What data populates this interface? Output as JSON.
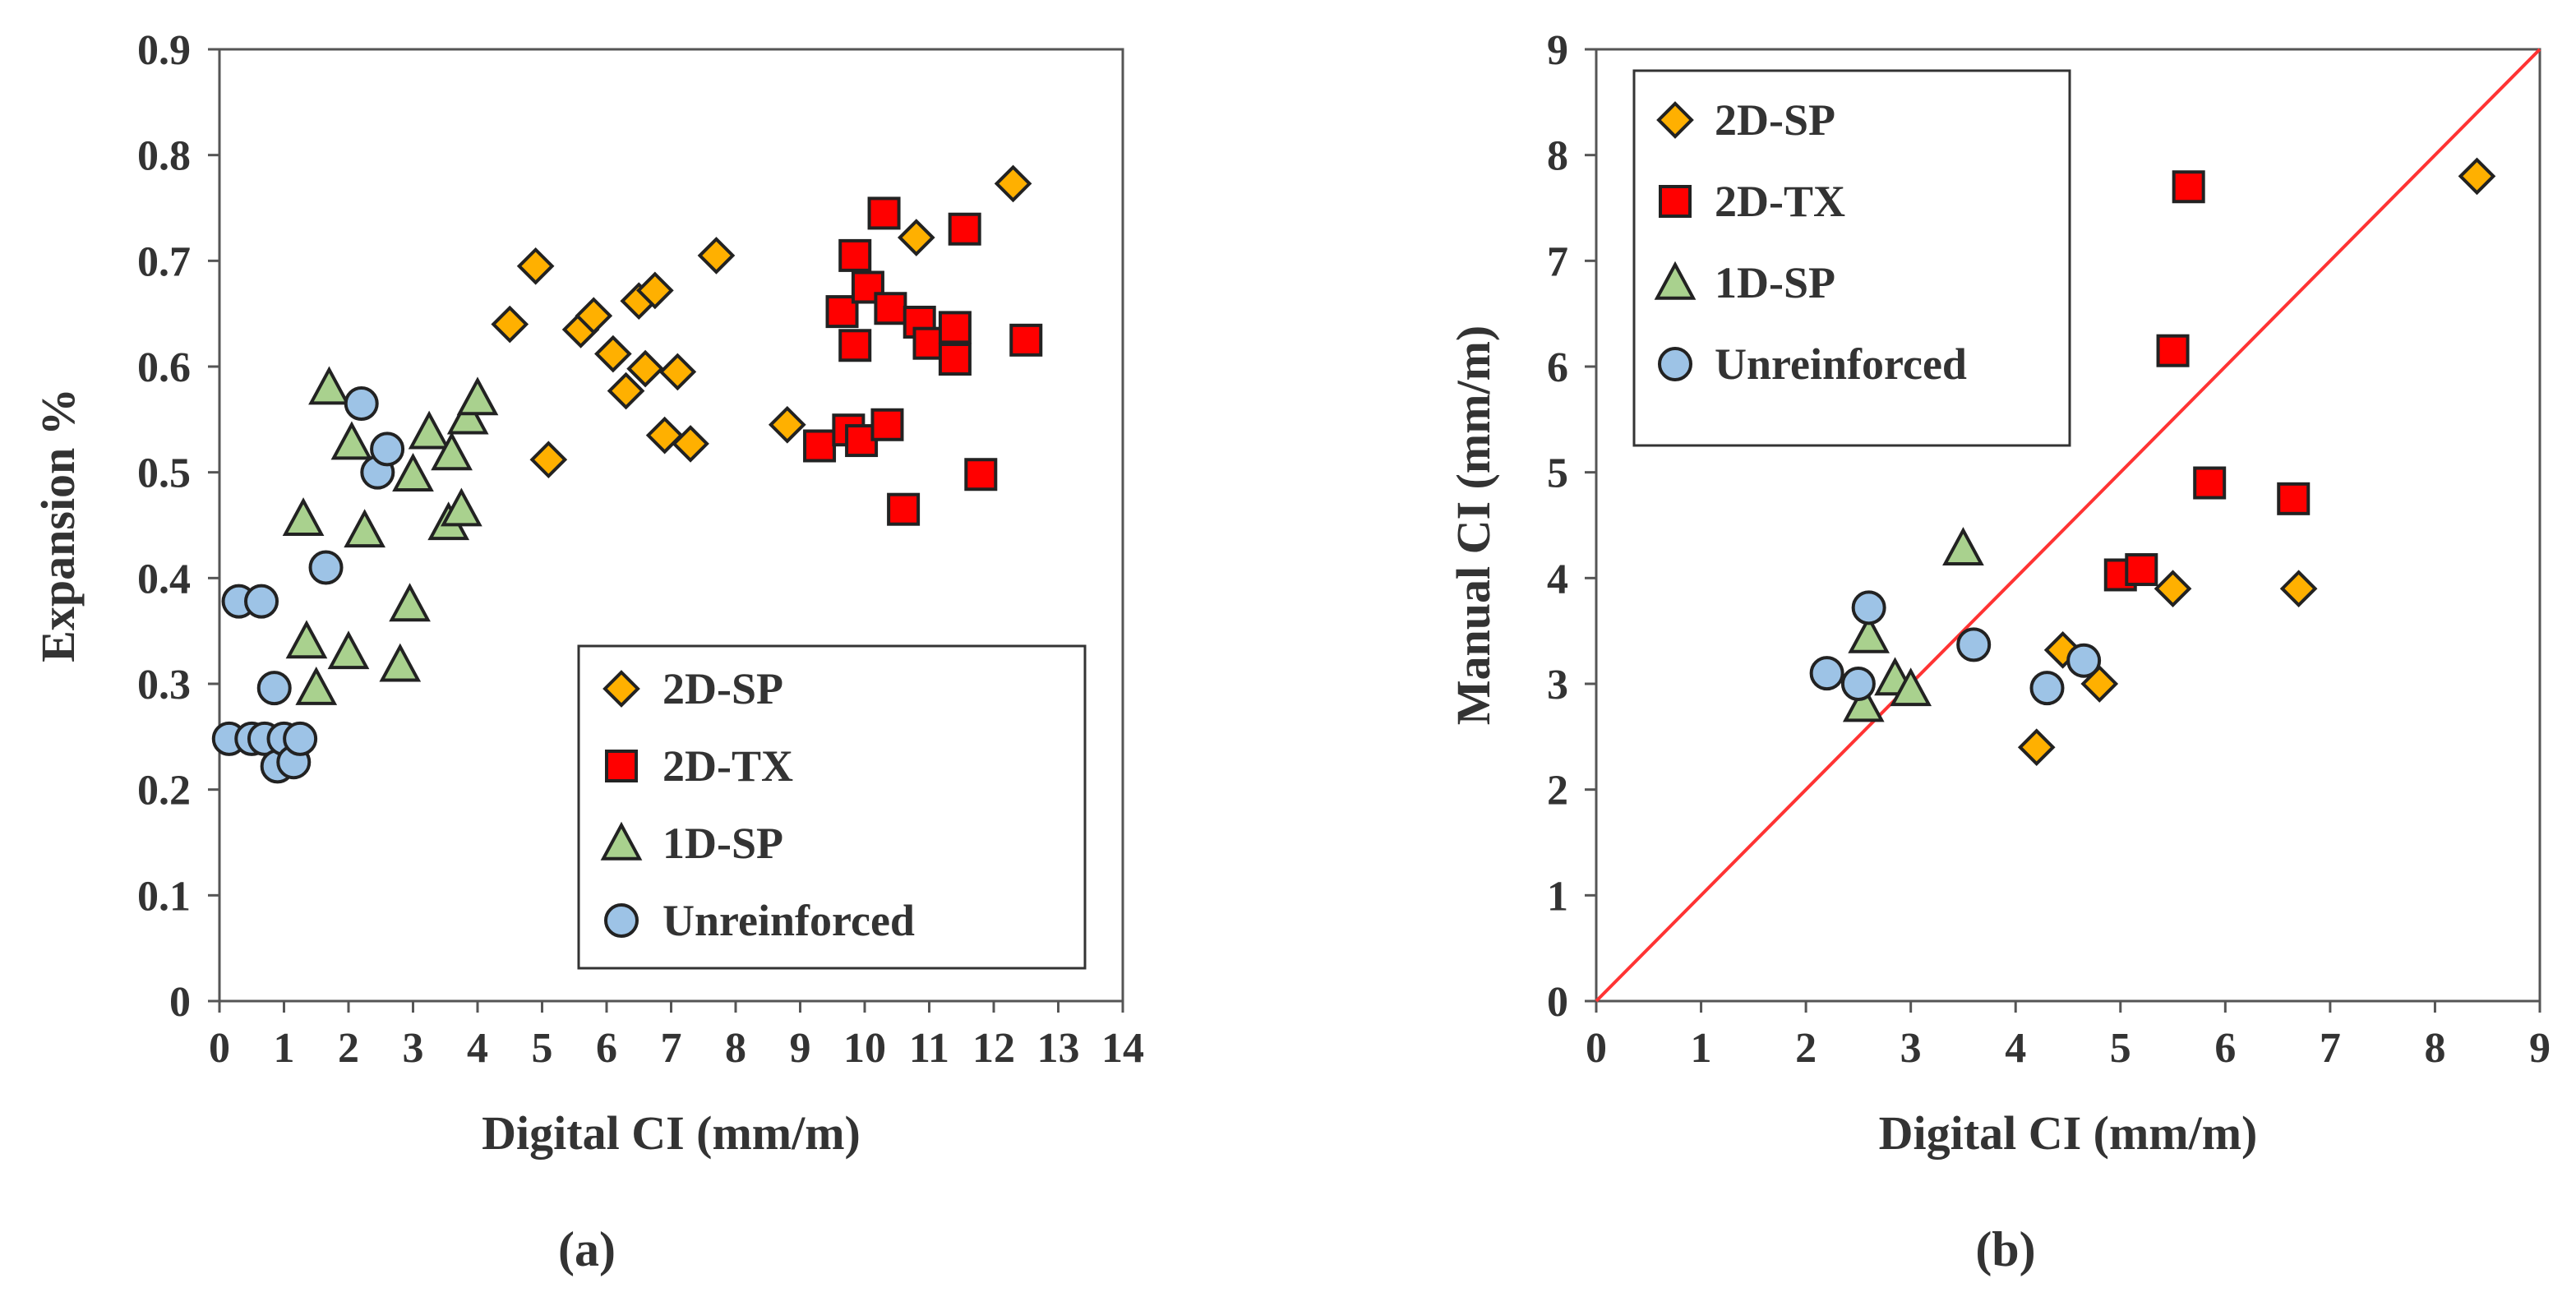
{
  "chart_data": [
    {
      "id": "a",
      "type": "scatter",
      "panel_label": "(a)",
      "xlabel": "Digital CI (mm/m)",
      "ylabel": "Expansion %",
      "xlim": [
        0,
        14
      ],
      "ylim": [
        0,
        0.9
      ],
      "xticks": [
        "0",
        "1",
        "2",
        "3",
        "4",
        "5",
        "6",
        "7",
        "8",
        "9",
        "10",
        "11",
        "12",
        "13",
        "14"
      ],
      "yticks": [
        "0",
        "0.1",
        "0.2",
        "0.3",
        "0.4",
        "0.5",
        "0.6",
        "0.7",
        "0.8",
        "0.9"
      ],
      "legend_position": "bottom-right",
      "series": [
        {
          "name": "2D-SP",
          "marker": "diamond",
          "color": "#ffb000",
          "points": [
            [
              4.5,
              0.64
            ],
            [
              4.9,
              0.695
            ],
            [
              5.1,
              0.512
            ],
            [
              5.6,
              0.635
            ],
            [
              5.8,
              0.648
            ],
            [
              6.1,
              0.612
            ],
            [
              6.3,
              0.577
            ],
            [
              6.5,
              0.662
            ],
            [
              6.6,
              0.598
            ],
            [
              6.75,
              0.672
            ],
            [
              6.9,
              0.535
            ],
            [
              7.1,
              0.595
            ],
            [
              7.3,
              0.527
            ],
            [
              7.7,
              0.705
            ],
            [
              8.8,
              0.545
            ],
            [
              10.8,
              0.722
            ],
            [
              12.3,
              0.773
            ]
          ]
        },
        {
          "name": "2D-TX",
          "marker": "square",
          "color": "#ff0000",
          "points": [
            [
              9.3,
              0.525
            ],
            [
              9.65,
              0.652
            ],
            [
              9.75,
              0.54
            ],
            [
              9.85,
              0.705
            ],
            [
              9.85,
              0.62
            ],
            [
              9.95,
              0.53
            ],
            [
              10.05,
              0.675
            ],
            [
              10.3,
              0.745
            ],
            [
              10.35,
              0.545
            ],
            [
              10.4,
              0.655
            ],
            [
              10.6,
              0.465
            ],
            [
              10.85,
              0.642
            ],
            [
              11.0,
              0.622
            ],
            [
              11.4,
              0.637
            ],
            [
              11.4,
              0.607
            ],
            [
              11.55,
              0.73
            ],
            [
              11.8,
              0.498
            ],
            [
              12.5,
              0.625
            ]
          ]
        },
        {
          "name": "1D-SP",
          "marker": "triangle",
          "color": "#a9d18e",
          "points": [
            [
              1.3,
              0.456
            ],
            [
              1.35,
              0.34
            ],
            [
              1.5,
              0.296
            ],
            [
              1.7,
              0.58
            ],
            [
              2.0,
              0.33
            ],
            [
              2.05,
              0.528
            ],
            [
              2.25,
              0.445
            ],
            [
              2.8,
              0.318
            ],
            [
              2.95,
              0.375
            ],
            [
              3.0,
              0.498
            ],
            [
              3.25,
              0.538
            ],
            [
              3.55,
              0.452
            ],
            [
              3.6,
              0.518
            ],
            [
              3.75,
              0.465
            ],
            [
              3.85,
              0.552
            ],
            [
              4.0,
              0.57
            ]
          ]
        },
        {
          "name": "Unreinforced",
          "marker": "circle",
          "color": "#9dc3e6",
          "points": [
            [
              0.15,
              0.248
            ],
            [
              0.3,
              0.378
            ],
            [
              0.5,
              0.248
            ],
            [
              0.65,
              0.378
            ],
            [
              0.7,
              0.248
            ],
            [
              0.85,
              0.296
            ],
            [
              0.9,
              0.222
            ],
            [
              1.0,
              0.248
            ],
            [
              1.15,
              0.226
            ],
            [
              1.25,
              0.248
            ],
            [
              1.65,
              0.41
            ],
            [
              2.2,
              0.565
            ],
            [
              2.45,
              0.5
            ],
            [
              2.6,
              0.522
            ]
          ]
        }
      ]
    },
    {
      "id": "b",
      "type": "scatter",
      "panel_label": "(b)",
      "xlabel": "Digital CI (mm/m)",
      "ylabel": "Manual CI (mm/m)",
      "xlim": [
        0,
        9
      ],
      "ylim": [
        0,
        9
      ],
      "xticks": [
        "0",
        "1",
        "2",
        "3",
        "4",
        "5",
        "6",
        "7",
        "8",
        "9"
      ],
      "yticks": [
        "0",
        "1",
        "2",
        "3",
        "4",
        "5",
        "6",
        "7",
        "8",
        "9"
      ],
      "legend_position": "top-left",
      "reference_line": {
        "from": [
          0,
          0
        ],
        "to": [
          9,
          9
        ],
        "color": "#ff3333"
      },
      "series": [
        {
          "name": "2D-SP",
          "marker": "diamond",
          "color": "#ffb000",
          "points": [
            [
              4.2,
              2.4
            ],
            [
              4.45,
              3.32
            ],
            [
              4.8,
              3.0
            ],
            [
              5.5,
              3.9
            ],
            [
              6.7,
              3.9
            ],
            [
              8.4,
              7.8
            ]
          ]
        },
        {
          "name": "2D-TX",
          "marker": "square",
          "color": "#ff0000",
          "points": [
            [
              5.0,
              4.03
            ],
            [
              5.2,
              4.08
            ],
            [
              5.5,
              6.15
            ],
            [
              5.65,
              7.7
            ],
            [
              5.85,
              4.9
            ],
            [
              6.65,
              4.75
            ]
          ]
        },
        {
          "name": "1D-SP",
          "marker": "triangle",
          "color": "#a9d18e",
          "points": [
            [
              2.55,
              2.8
            ],
            [
              2.6,
              3.45
            ],
            [
              2.85,
              3.05
            ],
            [
              3.0,
              2.95
            ],
            [
              3.5,
              4.28
            ]
          ]
        },
        {
          "name": "Unreinforced",
          "marker": "circle",
          "color": "#9dc3e6",
          "points": [
            [
              2.2,
              3.1
            ],
            [
              2.5,
              3.0
            ],
            [
              2.6,
              3.72
            ],
            [
              3.6,
              3.37
            ],
            [
              4.3,
              2.96
            ],
            [
              4.65,
              3.22
            ]
          ]
        }
      ]
    }
  ]
}
